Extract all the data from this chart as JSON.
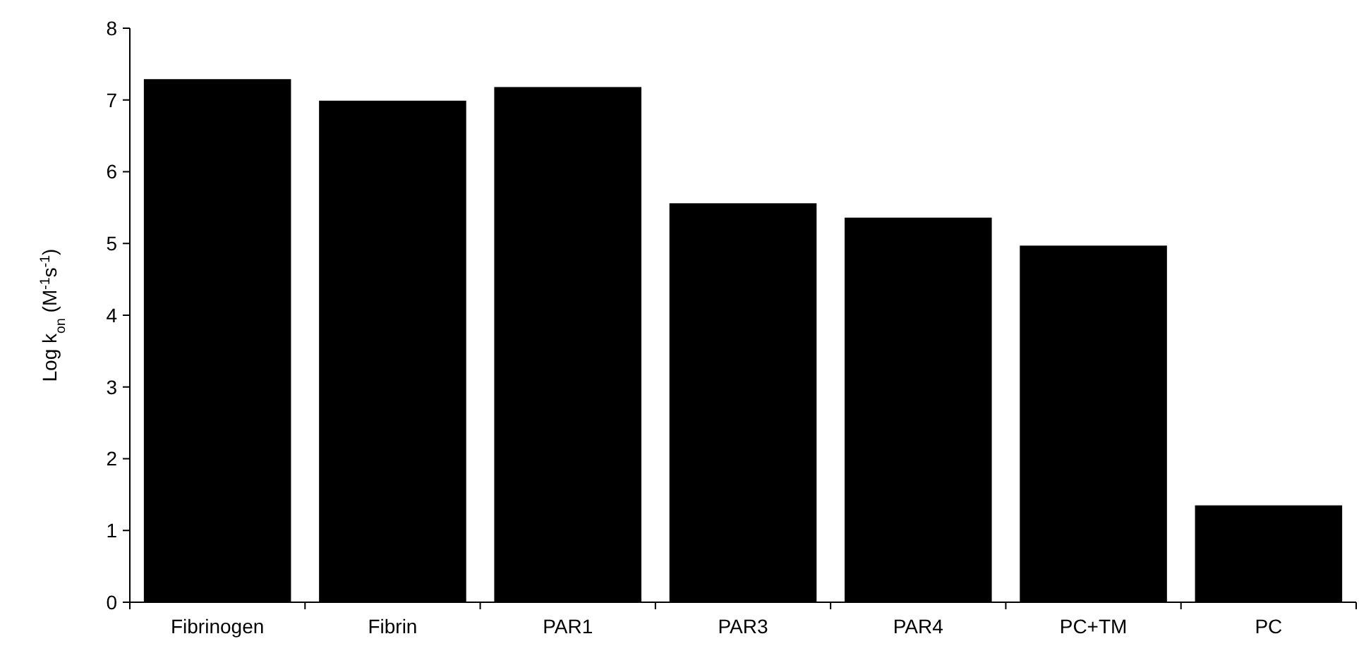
{
  "chart_data": {
    "type": "bar",
    "ylabel": "Log k$_{on}$ (M$^{-1}$s$^{-1}$)",
    "categories": [
      "Fibrinogen",
      "Fibrin",
      "PAR1",
      "PAR3",
      "PAR4",
      "PC+TM",
      "PC"
    ],
    "values": [
      7.29,
      6.99,
      7.18,
      5.56,
      5.36,
      4.97,
      1.35
    ],
    "color": "#000000",
    "ylim": [
      0,
      8
    ],
    "yticks": [
      0,
      1,
      2,
      3,
      4,
      5,
      6,
      7,
      8
    ],
    "grid": false
  }
}
